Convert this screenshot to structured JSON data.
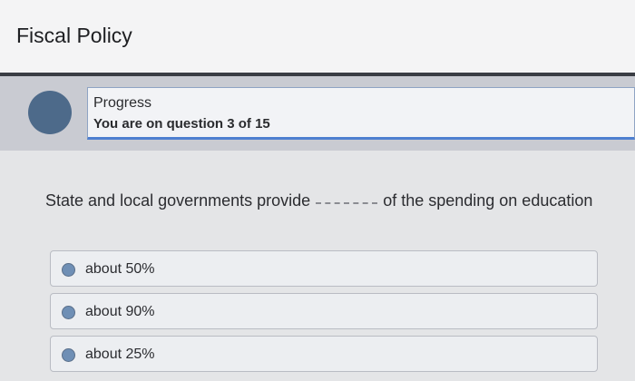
{
  "header": {
    "title": "Fiscal Policy"
  },
  "progress": {
    "label": "Progress",
    "status": "You are on question 3 of 15"
  },
  "question": {
    "before": "State and local governments provide",
    "after": "of the spending on education"
  },
  "options": [
    "about 50%",
    "about 90%",
    "about 25%"
  ]
}
